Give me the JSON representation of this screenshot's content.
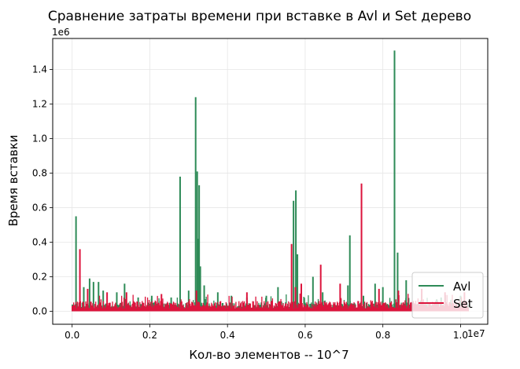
{
  "chart_data": {
    "type": "line",
    "title": "Сравнение затраты времени при вставке в Avl и Set дерево",
    "xlabel": "Кол-во элементов -- 10^7",
    "ylabel": "Время вставки",
    "x_offset_label": "1e7",
    "y_offset_label": "1e6",
    "xlim": [
      -0.05,
      1.07
    ],
    "ylim": [
      -0.075,
      1.58
    ],
    "x_ticks": [
      0.0,
      0.2,
      0.4,
      0.6,
      0.8,
      1.0
    ],
    "x_tick_labels": [
      "0.0",
      "0.2",
      "0.4",
      "0.6",
      "0.8",
      "1.0"
    ],
    "y_ticks": [
      0.0,
      0.2,
      0.4,
      0.6,
      0.8,
      1.0,
      1.2,
      1.4
    ],
    "y_tick_labels": [
      "0.0",
      "0.2",
      "0.4",
      "0.6",
      "0.8",
      "1.0",
      "1.2",
      "1.4"
    ],
    "grid": true,
    "legend_position": "lower-right",
    "x_end": 1.02,
    "series": [
      {
        "name": "Avl",
        "color": "#2e8b57",
        "baseline": 0.035,
        "peaks": [
          [
            0.01,
            0.55
          ],
          [
            0.03,
            0.14
          ],
          [
            0.045,
            0.19
          ],
          [
            0.055,
            0.17
          ],
          [
            0.068,
            0.17
          ],
          [
            0.08,
            0.12
          ],
          [
            0.115,
            0.11
          ],
          [
            0.135,
            0.16
          ],
          [
            0.17,
            0.08
          ],
          [
            0.205,
            0.09
          ],
          [
            0.255,
            0.08
          ],
          [
            0.278,
            0.78
          ],
          [
            0.3,
            0.12
          ],
          [
            0.318,
            1.24
          ],
          [
            0.322,
            0.81
          ],
          [
            0.325,
            0.42
          ],
          [
            0.327,
            0.73
          ],
          [
            0.33,
            0.26
          ],
          [
            0.34,
            0.15
          ],
          [
            0.375,
            0.11
          ],
          [
            0.41,
            0.09
          ],
          [
            0.45,
            0.08
          ],
          [
            0.5,
            0.09
          ],
          [
            0.53,
            0.14
          ],
          [
            0.57,
            0.64
          ],
          [
            0.576,
            0.7
          ],
          [
            0.58,
            0.33
          ],
          [
            0.62,
            0.2
          ],
          [
            0.645,
            0.11
          ],
          [
            0.71,
            0.15
          ],
          [
            0.715,
            0.44
          ],
          [
            0.75,
            0.09
          ],
          [
            0.78,
            0.16
          ],
          [
            0.8,
            0.14
          ],
          [
            0.83,
            1.51
          ],
          [
            0.838,
            0.34
          ],
          [
            0.86,
            0.18
          ],
          [
            0.9,
            0.1
          ],
          [
            0.95,
            0.08
          ],
          [
            1.0,
            0.09
          ]
        ]
      },
      {
        "name": "Set",
        "color": "#dc143c",
        "baseline": 0.04,
        "peaks": [
          [
            0.02,
            0.36
          ],
          [
            0.04,
            0.13
          ],
          [
            0.09,
            0.11
          ],
          [
            0.14,
            0.11
          ],
          [
            0.23,
            0.1
          ],
          [
            0.32,
            0.12
          ],
          [
            0.45,
            0.11
          ],
          [
            0.565,
            0.39
          ],
          [
            0.575,
            0.14
          ],
          [
            0.59,
            0.16
          ],
          [
            0.64,
            0.27
          ],
          [
            0.69,
            0.16
          ],
          [
            0.745,
            0.74
          ],
          [
            0.79,
            0.13
          ],
          [
            0.84,
            0.12
          ],
          [
            0.9,
            0.13
          ],
          [
            0.96,
            0.11
          ],
          [
            1.01,
            0.11
          ]
        ]
      }
    ]
  }
}
